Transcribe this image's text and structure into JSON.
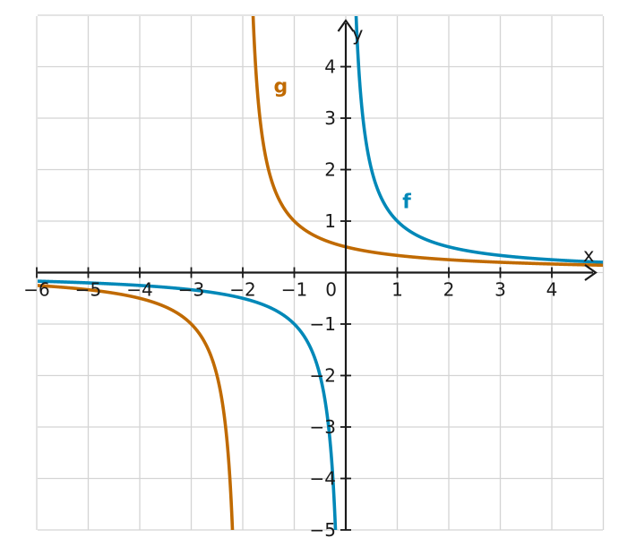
{
  "chart_data": {
    "type": "line",
    "title": "",
    "xlabel": "x",
    "ylabel": "y",
    "xlim": [
      -6,
      5
    ],
    "ylim": [
      -5,
      5
    ],
    "grid": true,
    "x_tick_labels": [
      "−6",
      "−5",
      "−4",
      "−3",
      "−2",
      "−1",
      "0",
      "1",
      "2",
      "3",
      "4"
    ],
    "y_tick_labels": [
      "4",
      "3",
      "2",
      "1",
      "−1",
      "−2",
      "−3",
      "−4",
      "−5"
    ],
    "series": [
      {
        "name": "f",
        "color": "#0088b8",
        "branches": [
          {
            "x": [
              -6,
              -5,
              -4,
              -3,
              -2,
              -1,
              -0.5,
              -0.3,
              -0.25,
              -0.2
            ],
            "y": [
              -0.17,
              -0.2,
              -0.25,
              -0.33,
              -0.5,
              -1,
              -2,
              -3.33,
              -4,
              -5
            ]
          },
          {
            "x": [
              0.2,
              0.25,
              0.3,
              0.5,
              1,
              2,
              3,
              4,
              5
            ],
            "y": [
              5,
              4,
              3.33,
              2,
              1,
              0.5,
              0.33,
              0.25,
              0.2
            ]
          }
        ]
      },
      {
        "name": "g",
        "color": "#c06a00",
        "branches": [
          {
            "x": [
              -6,
              -5,
              -4,
              -3,
              -2.5,
              -2.2
            ],
            "y": [
              -0.25,
              -0.33,
              -0.5,
              -1,
              -2,
              -5
            ]
          },
          {
            "x": [
              -1.8,
              -1.5,
              -1,
              0,
              1,
              2,
              3,
              4,
              5
            ],
            "y": [
              5,
              2,
              1,
              0.5,
              0.33,
              0.25,
              0.2,
              0.17,
              0.14
            ]
          }
        ]
      }
    ]
  }
}
